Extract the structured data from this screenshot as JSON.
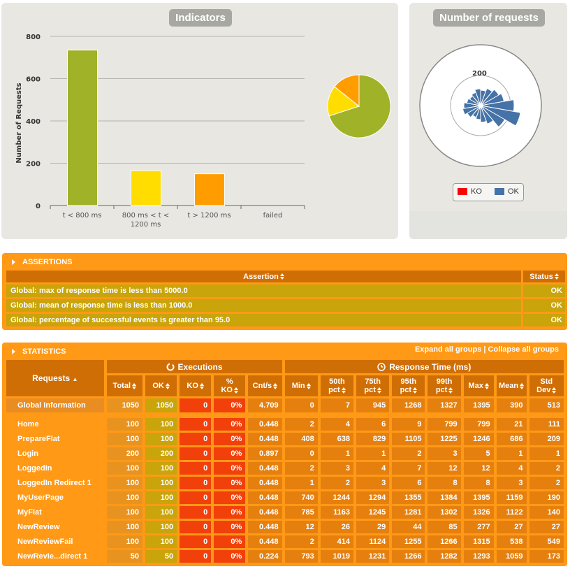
{
  "indicators": {
    "title": "Indicators",
    "chart_data": {
      "type": "bar",
      "ylabel": "Number of Requests",
      "ylim": [
        0,
        800
      ],
      "yticks": [
        "0",
        "200",
        "400",
        "600",
        "800"
      ],
      "categories": [
        "t < 800 ms",
        "800 ms < t < 1200 ms",
        "t > 1200 ms",
        "failed"
      ],
      "category_lines": [
        [
          "t < 800 ms"
        ],
        [
          "800 ms < t <",
          "1200 ms"
        ],
        [
          "t > 1200 ms"
        ],
        [
          "failed"
        ]
      ],
      "values": [
        735,
        165,
        150,
        0
      ],
      "colors": [
        "#a0b228",
        "#ffdd00",
        "#ff9d00",
        "#ff0000"
      ]
    },
    "pie": {
      "type": "pie",
      "values": [
        735,
        165,
        150,
        0
      ],
      "colors": [
        "#a0b228",
        "#ffdd00",
        "#ff9d00",
        "#ff0000"
      ]
    }
  },
  "requests_panel": {
    "title": "Number of requests",
    "ring_label": "200",
    "legend": [
      {
        "label": "KO",
        "color": "#ff0000"
      },
      {
        "label": "OK",
        "color": "#4572a7"
      }
    ]
  },
  "assertions": {
    "title": "ASSERTIONS",
    "headers": {
      "assertion": "Assertion",
      "status": "Status"
    },
    "rows": [
      {
        "text": "Global: max of response time is less than 5000.0",
        "status": "OK"
      },
      {
        "text": "Global: mean of response time is less than 1000.0",
        "status": "OK"
      },
      {
        "text": "Global: percentage of successful events is greater than 95.0",
        "status": "OK"
      }
    ]
  },
  "statistics": {
    "title": "STATISTICS",
    "expand_all": "Expand all groups",
    "separator": "|",
    "collapse_all": "Collapse all groups",
    "groups": {
      "executions": "Executions",
      "response_time": "Response Time (ms)"
    },
    "headers": {
      "requests": "Requests",
      "total": "Total",
      "ok": "OK",
      "ko": "KO",
      "pct_ko_1": "%",
      "pct_ko_2": "KO",
      "cnt": "Cnt/s",
      "min": "Min",
      "p50_1": "50th",
      "p50_2": "pct",
      "p75_1": "75th",
      "p75_2": "pct",
      "p95_1": "95th",
      "p95_2": "pct",
      "p99_1": "99th",
      "p99_2": "pct",
      "max": "Max",
      "mean": "Mean",
      "std_1": "Std",
      "std_2": "Dev"
    },
    "global": {
      "name": "Global Information",
      "cells": [
        "1050",
        "1050",
        "0",
        "0%",
        "4.709",
        "0",
        "7",
        "945",
        "1268",
        "1327",
        "1395",
        "390",
        "513"
      ]
    },
    "rows": [
      {
        "name": "Home",
        "cells": [
          "100",
          "100",
          "0",
          "0%",
          "0.448",
          "2",
          "4",
          "6",
          "9",
          "799",
          "799",
          "21",
          "111"
        ]
      },
      {
        "name": "PrepareFlat",
        "cells": [
          "100",
          "100",
          "0",
          "0%",
          "0.448",
          "408",
          "638",
          "829",
          "1105",
          "1225",
          "1246",
          "686",
          "209"
        ]
      },
      {
        "name": "Login",
        "cells": [
          "200",
          "200",
          "0",
          "0%",
          "0.897",
          "0",
          "1",
          "1",
          "2",
          "3",
          "5",
          "1",
          "1"
        ]
      },
      {
        "name": "LoggedIn",
        "cells": [
          "100",
          "100",
          "0",
          "0%",
          "0.448",
          "2",
          "3",
          "4",
          "7",
          "12",
          "12",
          "4",
          "2"
        ]
      },
      {
        "name": "LoggedIn Redirect 1",
        "cells": [
          "100",
          "100",
          "0",
          "0%",
          "0.448",
          "1",
          "2",
          "3",
          "6",
          "8",
          "8",
          "3",
          "2"
        ]
      },
      {
        "name": "MyUserPage",
        "cells": [
          "100",
          "100",
          "0",
          "0%",
          "0.448",
          "740",
          "1244",
          "1294",
          "1355",
          "1384",
          "1395",
          "1159",
          "190"
        ]
      },
      {
        "name": "MyFlat",
        "cells": [
          "100",
          "100",
          "0",
          "0%",
          "0.448",
          "785",
          "1163",
          "1245",
          "1281",
          "1302",
          "1326",
          "1122",
          "140"
        ]
      },
      {
        "name": "NewReview",
        "cells": [
          "100",
          "100",
          "0",
          "0%",
          "0.448",
          "12",
          "26",
          "29",
          "44",
          "85",
          "277",
          "27",
          "27"
        ]
      },
      {
        "name": "NewReviewFail",
        "cells": [
          "100",
          "100",
          "0",
          "0%",
          "0.448",
          "2",
          "414",
          "1124",
          "1255",
          "1266",
          "1315",
          "538",
          "549"
        ]
      },
      {
        "name": "NewRevie...direct 1",
        "cells": [
          "50",
          "50",
          "0",
          "0%",
          "0.224",
          "793",
          "1019",
          "1231",
          "1266",
          "1282",
          "1293",
          "1059",
          "173"
        ]
      }
    ]
  }
}
